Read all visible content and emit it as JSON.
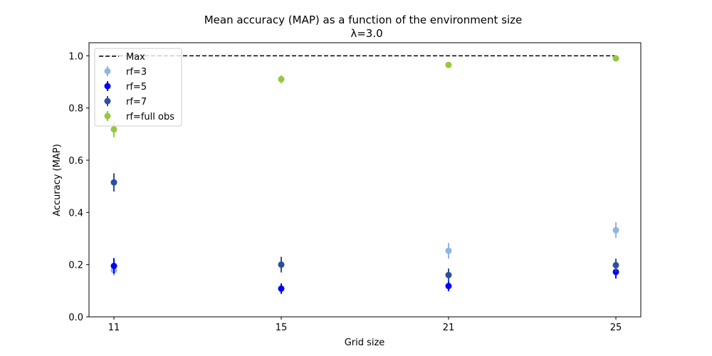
{
  "chart_data": {
    "type": "scatter",
    "title": "Mean accuracy (MAP) as a function of the environment size",
    "subtitle": "λ=3.0",
    "xlabel": "Grid size",
    "ylabel": "Accuracy (MAP)",
    "categories": [
      "11",
      "15",
      "21",
      "25"
    ],
    "ylim": [
      0.0,
      1.05
    ],
    "yticks": [
      "0.0",
      "0.2",
      "0.4",
      "0.6",
      "0.8",
      "1.0"
    ],
    "grid": false,
    "legend_position": "top-left",
    "reference_line": {
      "name": "Max",
      "value": 1.0,
      "color": "#000000",
      "style": "dashed"
    },
    "series": [
      {
        "name": "rf=3",
        "color": "#92b4e3",
        "values": [
          0.178,
          null,
          0.253,
          0.332
        ],
        "errors": [
          0.02,
          null,
          0.03,
          0.03
        ]
      },
      {
        "name": "rf=5",
        "color": "#0000ff",
        "values": [
          0.195,
          0.108,
          0.118,
          0.172
        ],
        "errors": [
          0.03,
          0.02,
          0.02,
          0.025
        ]
      },
      {
        "name": "rf=7",
        "color": "#2c4f9f",
        "values": [
          0.515,
          0.2,
          0.16,
          0.198
        ],
        "errors": [
          0.035,
          0.03,
          0.025,
          0.025
        ]
      },
      {
        "name": "rf=full obs",
        "color": "#94c93a",
        "values": [
          0.718,
          0.91,
          0.965,
          0.99
        ],
        "errors": [
          0.03,
          0.015,
          0.01,
          0.005
        ]
      }
    ]
  }
}
